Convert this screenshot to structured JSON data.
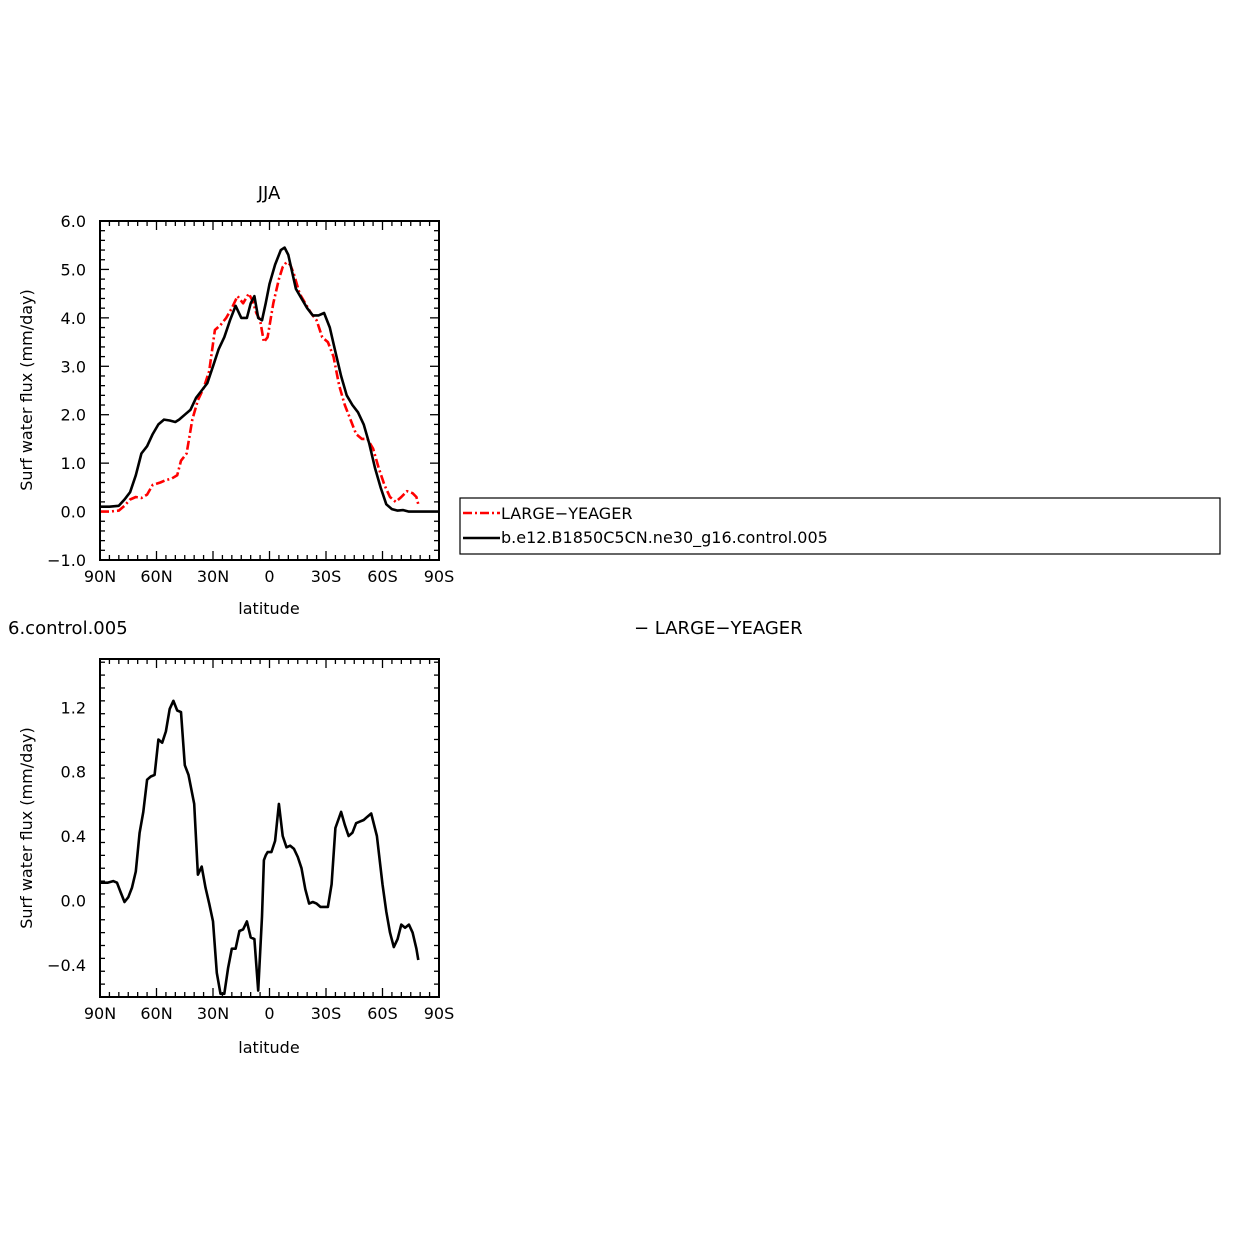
{
  "chart_data": [
    {
      "type": "line",
      "title": "JJA",
      "xlabel": "latitude",
      "ylabel": "Surf water flux (mm/day)",
      "xlim": [
        90,
        -90
      ],
      "ylim": [
        -1.0,
        6.0
      ],
      "x_ticks": [
        {
          "value": 90,
          "label": "90N"
        },
        {
          "value": 60,
          "label": "60N"
        },
        {
          "value": 30,
          "label": "30N"
        },
        {
          "value": 0,
          "label": "0"
        },
        {
          "value": -30,
          "label": "30S"
        },
        {
          "value": -60,
          "label": "60S"
        },
        {
          "value": -90,
          "label": "90S"
        }
      ],
      "y_ticks": [
        {
          "value": 6.0,
          "label": "6.0"
        },
        {
          "value": 5.0,
          "label": "5.0"
        },
        {
          "value": 4.0,
          "label": "4.0"
        },
        {
          "value": 3.0,
          "label": "3.0"
        },
        {
          "value": 2.0,
          "label": "2.0"
        },
        {
          "value": 1.0,
          "label": "1.0"
        },
        {
          "value": 0.0,
          "label": "0.0"
        },
        {
          "value": -1.0,
          "label": "−1.0"
        }
      ],
      "legend": {
        "placement": "right",
        "entries": [
          {
            "label": "LARGE−YEAGER",
            "style": "dashed",
            "color": "#ff0000"
          },
          {
            "label": "b.e12.B1850C5CN.ne30_g16.control.005",
            "style": "solid",
            "color": "#000000"
          }
        ]
      },
      "series": [
        {
          "name": "LARGE−YEAGER",
          "color": "#ff0000",
          "dash": true,
          "x": [
            90,
            85,
            80,
            77,
            74,
            71,
            68,
            65,
            62,
            58,
            55,
            52,
            49,
            47,
            44,
            41,
            38,
            35,
            32,
            29,
            26,
            23,
            20,
            17,
            14,
            11,
            9,
            7,
            5,
            3,
            1,
            -2,
            -5,
            -7,
            -9,
            -11,
            -13,
            -16,
            -19,
            -22,
            -25,
            -28,
            -31,
            -34,
            -37,
            -40,
            -43,
            -46,
            -49,
            -52,
            -55,
            -58,
            -61,
            -64,
            -67,
            -70,
            -73,
            -76,
            -78,
            -79
          ],
          "y": [
            0.0,
            0.0,
            0.02,
            0.12,
            0.25,
            0.3,
            0.28,
            0.35,
            0.55,
            0.6,
            0.65,
            0.68,
            0.75,
            1.05,
            1.2,
            1.9,
            2.3,
            2.55,
            2.9,
            3.75,
            3.85,
            4.0,
            4.2,
            4.45,
            4.3,
            4.5,
            4.35,
            4.1,
            3.95,
            3.5,
            3.6,
            4.3,
            4.8,
            5.05,
            5.15,
            5.1,
            4.9,
            4.5,
            4.3,
            4.1,
            3.95,
            3.6,
            3.5,
            3.2,
            2.6,
            2.2,
            1.9,
            1.6,
            1.5,
            1.5,
            1.3,
            0.9,
            0.55,
            0.3,
            0.2,
            0.3,
            0.42,
            0.38,
            0.3,
            0.15
          ]
        },
        {
          "name": "b.e12.B1850C5CN.ne30_g16.control.005",
          "color": "#000000",
          "dash": false,
          "x": [
            90,
            85,
            80,
            77,
            74,
            71,
            68,
            65,
            62,
            59,
            56,
            53,
            50,
            48,
            45,
            42,
            39,
            36,
            33,
            30,
            27,
            24,
            21,
            18,
            15,
            12,
            10,
            8,
            6,
            4,
            2,
            0,
            -3,
            -6,
            -8,
            -10,
            -12,
            -14,
            -17,
            -20,
            -23,
            -26,
            -29,
            -32,
            -35,
            -38,
            -41,
            -44,
            -47,
            -50,
            -53,
            -56,
            -59,
            -62,
            -65,
            -68,
            -71,
            -74,
            -77,
            -80,
            -83,
            -87,
            -90
          ],
          "y": [
            0.1,
            0.1,
            0.12,
            0.25,
            0.4,
            0.75,
            1.2,
            1.35,
            1.6,
            1.8,
            1.9,
            1.88,
            1.85,
            1.9,
            2.0,
            2.1,
            2.35,
            2.5,
            2.65,
            3.0,
            3.35,
            3.6,
            3.95,
            4.25,
            4.0,
            4.0,
            4.3,
            4.45,
            4.0,
            3.95,
            4.3,
            4.7,
            5.1,
            5.4,
            5.45,
            5.3,
            4.95,
            4.6,
            4.4,
            4.2,
            4.05,
            4.05,
            4.1,
            3.8,
            3.3,
            2.8,
            2.4,
            2.2,
            2.05,
            1.8,
            1.4,
            0.9,
            0.5,
            0.15,
            0.05,
            0.02,
            0.03,
            0.0,
            0.0,
            0.0,
            0.0,
            0.0,
            0.0
          ]
        }
      ]
    },
    {
      "type": "line",
      "title": "",
      "xlabel": "latitude",
      "ylabel": "Surf water flux (mm/day)",
      "xlim": [
        90,
        -90
      ],
      "ylim": [
        -0.6,
        1.5
      ],
      "x_ticks": [
        {
          "value": 90,
          "label": "90N"
        },
        {
          "value": 60,
          "label": "60N"
        },
        {
          "value": 30,
          "label": "30N"
        },
        {
          "value": 0,
          "label": "0"
        },
        {
          "value": -30,
          "label": "30S"
        },
        {
          "value": -60,
          "label": "60S"
        },
        {
          "value": -90,
          "label": "90S"
        }
      ],
      "y_ticks": [
        {
          "value": 1.2,
          "label": "1.2"
        },
        {
          "value": 0.8,
          "label": "0.8"
        },
        {
          "value": 0.4,
          "label": "0.4"
        },
        {
          "value": 0.0,
          "label": "0.0"
        },
        {
          "value": -0.4,
          "label": "−0.4"
        }
      ],
      "left_title": "6.control.005",
      "right_title": "− LARGE−YEAGER",
      "series": [
        {
          "name": "",
          "color": "#000000",
          "dash": false,
          "x": [
            90,
            86,
            83,
            81,
            79,
            77,
            75,
            73,
            71,
            69,
            67,
            65,
            63,
            61,
            59,
            57,
            55,
            53,
            51,
            49,
            47,
            45,
            43,
            40,
            38,
            36,
            34,
            32,
            30,
            28,
            26,
            24,
            22,
            20,
            18,
            16,
            14,
            12,
            10,
            8,
            6,
            4,
            3,
            2,
            1,
            -1,
            -3,
            -5,
            -7,
            -9,
            -11,
            -13,
            -15,
            -17,
            -19,
            -21,
            -23,
            -25,
            -27,
            -29,
            -31,
            -33,
            -35,
            -38,
            -40,
            -42,
            -44,
            -46,
            -48,
            -50,
            -52,
            -54,
            -57,
            -60,
            -62,
            -64,
            -66,
            -68,
            -70,
            -72,
            -74,
            -76,
            -78,
            -79
          ],
          "y": [
            0.11,
            0.11,
            0.12,
            0.11,
            0.05,
            -0.01,
            0.02,
            0.08,
            0.18,
            0.42,
            0.55,
            0.75,
            0.77,
            0.78,
            1.0,
            0.98,
            1.05,
            1.19,
            1.24,
            1.18,
            1.17,
            0.84,
            0.78,
            0.6,
            0.16,
            0.21,
            0.08,
            -0.02,
            -0.13,
            -0.45,
            -0.58,
            -0.58,
            -0.42,
            -0.3,
            -0.3,
            -0.19,
            -0.18,
            -0.13,
            -0.23,
            -0.24,
            -0.56,
            -0.1,
            0.25,
            0.28,
            0.3,
            0.3,
            0.37,
            0.6,
            0.4,
            0.33,
            0.34,
            0.32,
            0.27,
            0.2,
            0.07,
            -0.02,
            -0.01,
            -0.02,
            -0.04,
            -0.04,
            -0.04,
            0.1,
            0.45,
            0.55,
            0.47,
            0.4,
            0.42,
            0.48,
            0.49,
            0.5,
            0.52,
            0.54,
            0.4,
            0.1,
            -0.07,
            -0.2,
            -0.29,
            -0.24,
            -0.15,
            -0.17,
            -0.15,
            -0.2,
            -0.3,
            -0.37
          ]
        }
      ]
    }
  ]
}
